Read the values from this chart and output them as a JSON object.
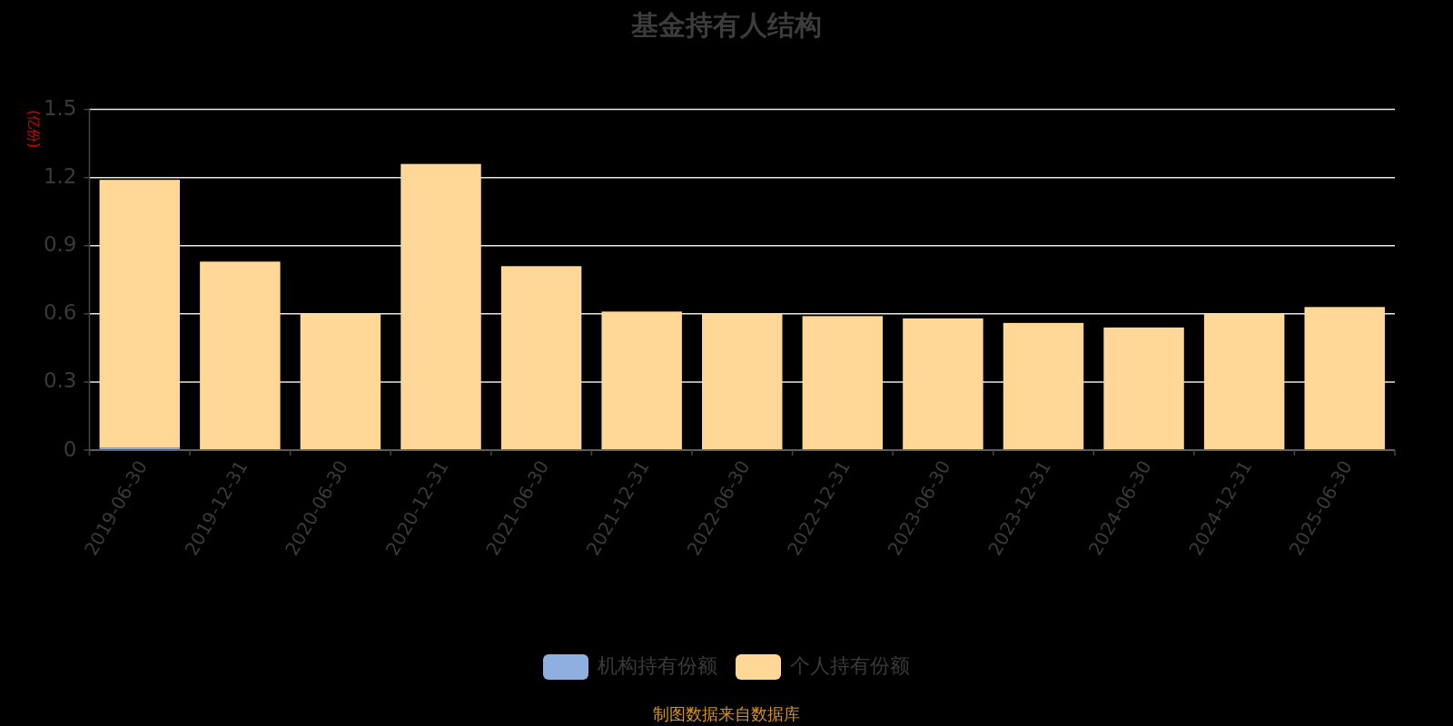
{
  "chart_data": {
    "type": "bar",
    "title": "基金持有人结构",
    "ylabel": "(亿份)",
    "categories": [
      "2019-06-30",
      "2019-12-31",
      "2020-06-30",
      "2020-12-31",
      "2021-06-30",
      "2021-12-31",
      "2022-06-30",
      "2022-12-31",
      "2023-06-30",
      "2023-12-31",
      "2024-06-30",
      "2024-12-31",
      "2025-06-30"
    ],
    "series": [
      {
        "name": "机构持有份额",
        "color": "#8fb0de",
        "values": [
          0.01,
          0,
          0,
          0,
          0,
          0,
          0,
          0,
          0,
          0,
          0,
          0,
          0
        ]
      },
      {
        "name": "个人持有份额",
        "color": "#ffd898",
        "values": [
          1.18,
          0.83,
          0.6,
          1.26,
          0.81,
          0.61,
          0.6,
          0.59,
          0.58,
          0.56,
          0.54,
          0.6,
          0.63
        ]
      }
    ],
    "stacked": true,
    "ylim": [
      0,
      1.5
    ],
    "yticks": [
      0,
      0.3,
      0.6,
      0.9,
      1.2,
      1.5
    ],
    "grid": "y",
    "legend": "bottom",
    "annotations": [
      "制图数据来自数据库"
    ]
  }
}
